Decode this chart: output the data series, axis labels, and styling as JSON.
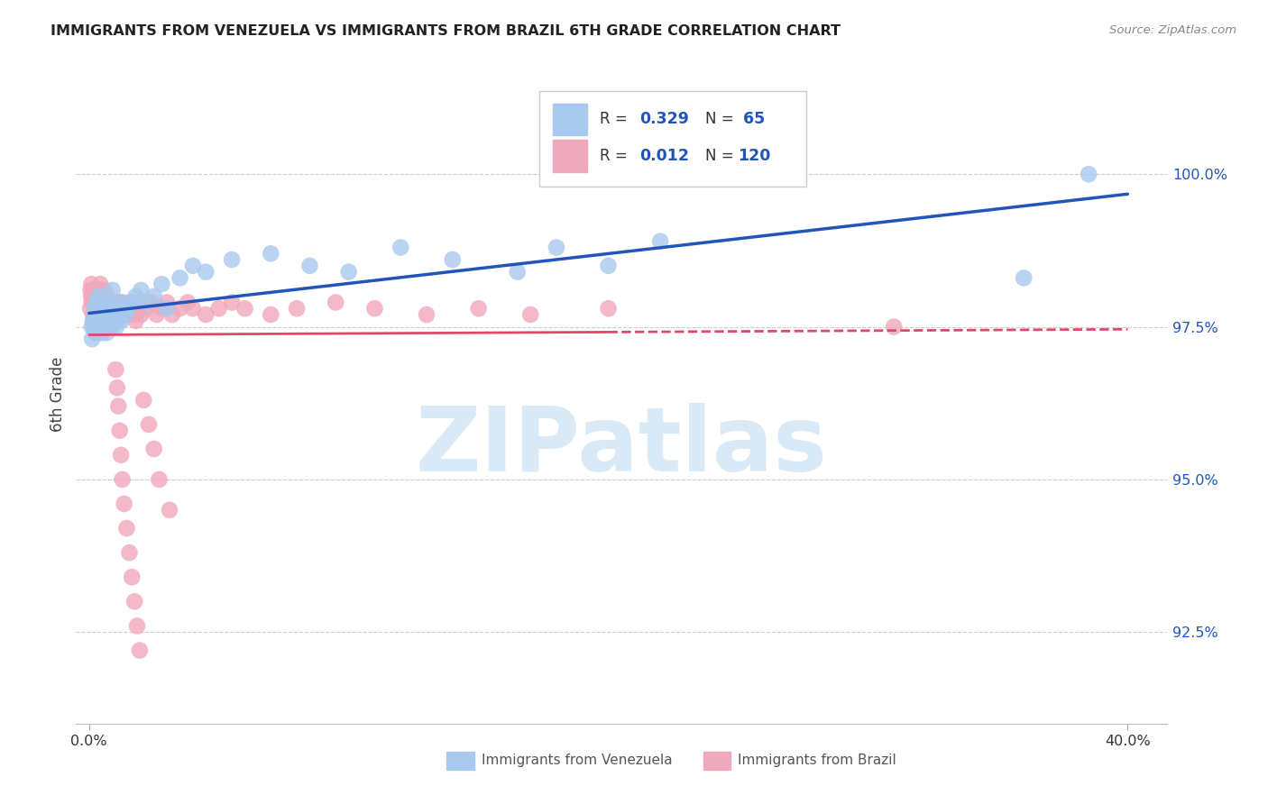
{
  "title": "IMMIGRANTS FROM VENEZUELA VS IMMIGRANTS FROM BRAZIL 6TH GRADE CORRELATION CHART",
  "source": "Source: ZipAtlas.com",
  "ylabel": "6th Grade",
  "yaxis_values": [
    100.0,
    97.5,
    95.0,
    92.5
  ],
  "ylim": [
    91.0,
    101.8
  ],
  "xlim": [
    -0.5,
    41.5
  ],
  "legend_blue_r": "0.329",
  "legend_blue_n": "65",
  "legend_pink_r": "0.012",
  "legend_pink_n": "120",
  "blue_color": "#A8C8EE",
  "pink_color": "#F0A8BC",
  "blue_line_color": "#2255BB",
  "pink_line_color": "#E04868",
  "watermark_color": "#D5E8F5",
  "watermark_text": "ZIPatlas",
  "ven_x": [
    0.1,
    0.15,
    0.2,
    0.25,
    0.3,
    0.35,
    0.4,
    0.45,
    0.5,
    0.55,
    0.6,
    0.65,
    0.7,
    0.75,
    0.8,
    0.85,
    0.9,
    0.95,
    1.0,
    1.05,
    1.1,
    1.2,
    1.3,
    1.4,
    1.5,
    1.6,
    1.8,
    2.0,
    2.2,
    2.5,
    2.8,
    3.0,
    3.5,
    4.0,
    4.5,
    5.5,
    7.0,
    8.5,
    10.0,
    12.0,
    14.0,
    16.5,
    18.0,
    20.0,
    22.0,
    0.12,
    0.18,
    0.22,
    0.28,
    0.32,
    0.38,
    0.42,
    0.48,
    0.52,
    0.58,
    0.62,
    0.68,
    0.72,
    0.78,
    0.85,
    1.15,
    1.25,
    1.45,
    36.0,
    38.5
  ],
  "ven_y": [
    97.5,
    97.6,
    97.8,
    97.4,
    97.9,
    98.0,
    97.7,
    97.6,
    97.5,
    97.8,
    97.9,
    97.7,
    98.0,
    97.8,
    97.6,
    97.5,
    98.1,
    97.7,
    97.8,
    97.5,
    97.6,
    97.9,
    97.8,
    97.7,
    97.8,
    97.9,
    98.0,
    98.1,
    97.9,
    98.0,
    98.2,
    97.8,
    98.3,
    98.5,
    98.4,
    98.6,
    98.7,
    98.5,
    98.4,
    98.8,
    98.6,
    98.4,
    98.8,
    98.5,
    98.9,
    97.3,
    97.5,
    97.6,
    97.4,
    97.7,
    97.5,
    97.6,
    97.4,
    97.7,
    97.5,
    97.6,
    97.4,
    97.7,
    97.5,
    97.6,
    97.7,
    97.6,
    97.8,
    98.3,
    100.0
  ],
  "bra_x": [
    0.05,
    0.08,
    0.1,
    0.12,
    0.15,
    0.18,
    0.2,
    0.22,
    0.25,
    0.28,
    0.3,
    0.32,
    0.35,
    0.38,
    0.4,
    0.42,
    0.45,
    0.48,
    0.5,
    0.52,
    0.55,
    0.58,
    0.6,
    0.62,
    0.65,
    0.68,
    0.7,
    0.72,
    0.75,
    0.78,
    0.8,
    0.82,
    0.85,
    0.88,
    0.9,
    0.92,
    0.95,
    0.98,
    1.0,
    1.05,
    1.1,
    1.15,
    1.2,
    1.25,
    1.3,
    1.4,
    1.5,
    1.6,
    1.7,
    1.8,
    1.9,
    2.0,
    2.2,
    2.4,
    2.6,
    2.8,
    3.0,
    3.2,
    3.5,
    3.8,
    4.0,
    4.5,
    5.0,
    5.5,
    6.0,
    7.0,
    8.0,
    9.5,
    11.0,
    13.0,
    15.0,
    17.0,
    0.06,
    0.09,
    0.13,
    0.16,
    0.19,
    0.23,
    0.26,
    0.29,
    0.33,
    0.36,
    0.39,
    0.43,
    0.46,
    0.49,
    0.53,
    0.56,
    0.59,
    0.63,
    0.66,
    0.69,
    0.73,
    0.76,
    0.79,
    0.83,
    0.86,
    0.89,
    0.93,
    0.96,
    1.03,
    1.08,
    1.13,
    1.18,
    1.23,
    1.28,
    1.35,
    1.45,
    1.55,
    1.65,
    1.75,
    1.85,
    1.95,
    2.1,
    2.3,
    2.5,
    2.7,
    3.1,
    20.0,
    31.0
  ],
  "bra_y": [
    97.8,
    98.0,
    97.9,
    98.1,
    97.7,
    97.6,
    97.9,
    97.8,
    98.0,
    97.5,
    97.9,
    98.1,
    97.8,
    97.6,
    97.9,
    98.0,
    97.7,
    97.8,
    97.6,
    97.9,
    97.8,
    97.7,
    98.0,
    97.9,
    97.8,
    97.7,
    97.9,
    97.8,
    97.6,
    97.7,
    97.8,
    97.5,
    97.6,
    97.8,
    97.7,
    97.9,
    97.8,
    97.6,
    97.7,
    97.8,
    97.9,
    97.8,
    97.7,
    97.8,
    97.9,
    97.7,
    97.8,
    97.9,
    97.7,
    97.6,
    97.8,
    97.7,
    97.8,
    97.9,
    97.7,
    97.8,
    97.9,
    97.7,
    97.8,
    97.9,
    97.8,
    97.7,
    97.8,
    97.9,
    97.8,
    97.7,
    97.8,
    97.9,
    97.8,
    97.7,
    97.8,
    97.7,
    98.1,
    98.2,
    98.0,
    97.9,
    98.1,
    98.0,
    97.9,
    98.0,
    98.1,
    97.9,
    98.0,
    98.2,
    98.1,
    98.0,
    97.9,
    98.0,
    98.1,
    98.0,
    97.8,
    97.7,
    97.9,
    97.8,
    97.7,
    97.6,
    97.8,
    97.7,
    97.6,
    97.8,
    96.8,
    96.5,
    96.2,
    95.8,
    95.4,
    95.0,
    94.6,
    94.2,
    93.8,
    93.4,
    93.0,
    92.6,
    92.2,
    96.3,
    95.9,
    95.5,
    95.0,
    94.5,
    97.8,
    97.5
  ]
}
